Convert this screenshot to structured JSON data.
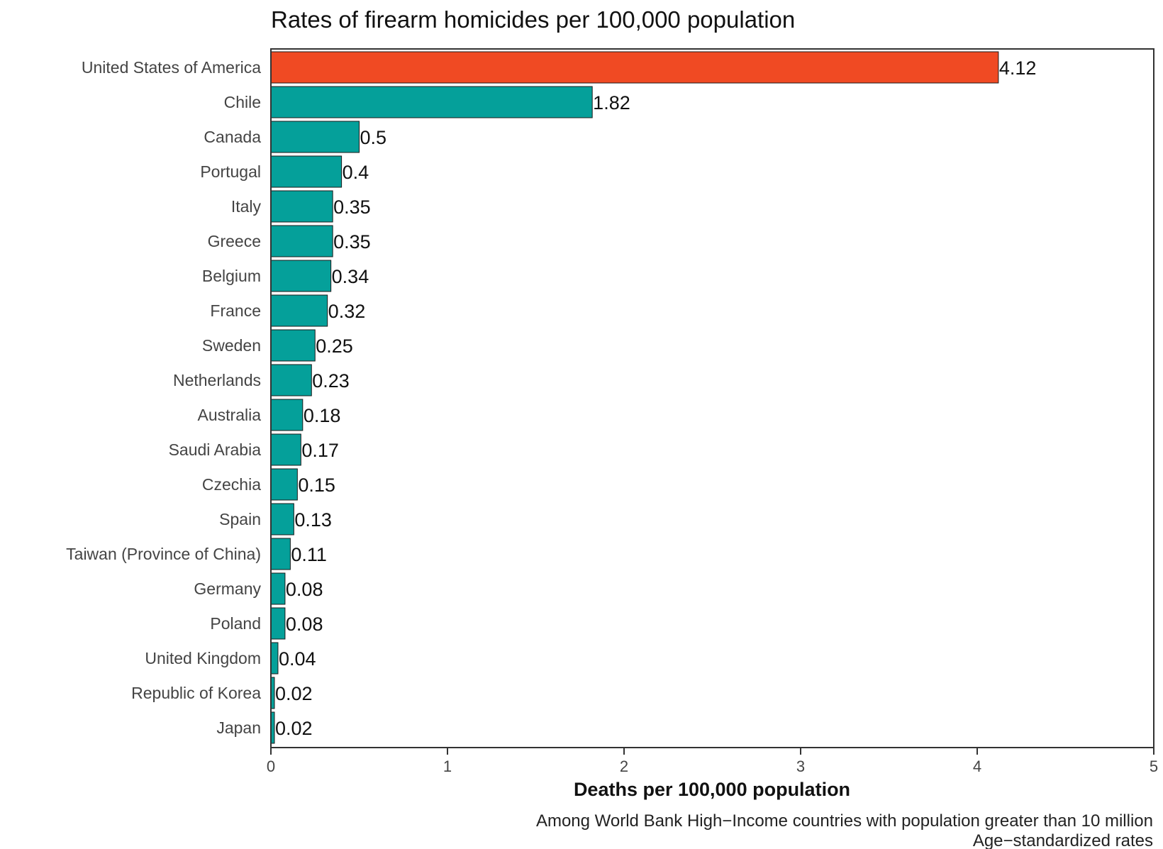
{
  "chart_data": {
    "type": "bar",
    "orientation": "horizontal",
    "title": "Rates of firearm homicides per 100,000 population",
    "xlabel": "Deaths per 100,000 population",
    "ylabel": "",
    "categories": [
      "United States of America",
      "Chile",
      "Canada",
      "Portugal",
      "Italy",
      "Greece",
      "Belgium",
      "France",
      "Sweden",
      "Netherlands",
      "Australia",
      "Saudi Arabia",
      "Czechia",
      "Spain",
      "Taiwan (Province of China)",
      "Germany",
      "Poland",
      "United Kingdom",
      "Republic of Korea",
      "Japan"
    ],
    "values": [
      4.12,
      1.82,
      0.5,
      0.4,
      0.35,
      0.35,
      0.34,
      0.32,
      0.25,
      0.23,
      0.18,
      0.17,
      0.15,
      0.13,
      0.11,
      0.08,
      0.08,
      0.04,
      0.02,
      0.02
    ],
    "value_labels": [
      "4.12",
      "1.82",
      "0.5",
      "0.4",
      "0.35",
      "0.35",
      "0.34",
      "0.32",
      "0.25",
      "0.23",
      "0.18",
      "0.17",
      "0.15",
      "0.13",
      "0.11",
      "0.08",
      "0.08",
      "0.04",
      "0.02",
      "0.02"
    ],
    "highlight_index": 0,
    "xlim": [
      0,
      5
    ],
    "xticks": [
      0,
      1,
      2,
      3,
      4,
      5
    ],
    "xtick_labels": [
      "0",
      "1",
      "2",
      "3",
      "4",
      "5"
    ],
    "grid": false,
    "legend": "none",
    "colors": {
      "highlight": "#F04A23",
      "default": "#05A09A",
      "bar_outline": "#1a1a1a",
      "frame": "#333333"
    },
    "captions": [
      "Among World Bank High−Income countries with population greater than 10 million",
      "Age−standardized rates"
    ]
  }
}
